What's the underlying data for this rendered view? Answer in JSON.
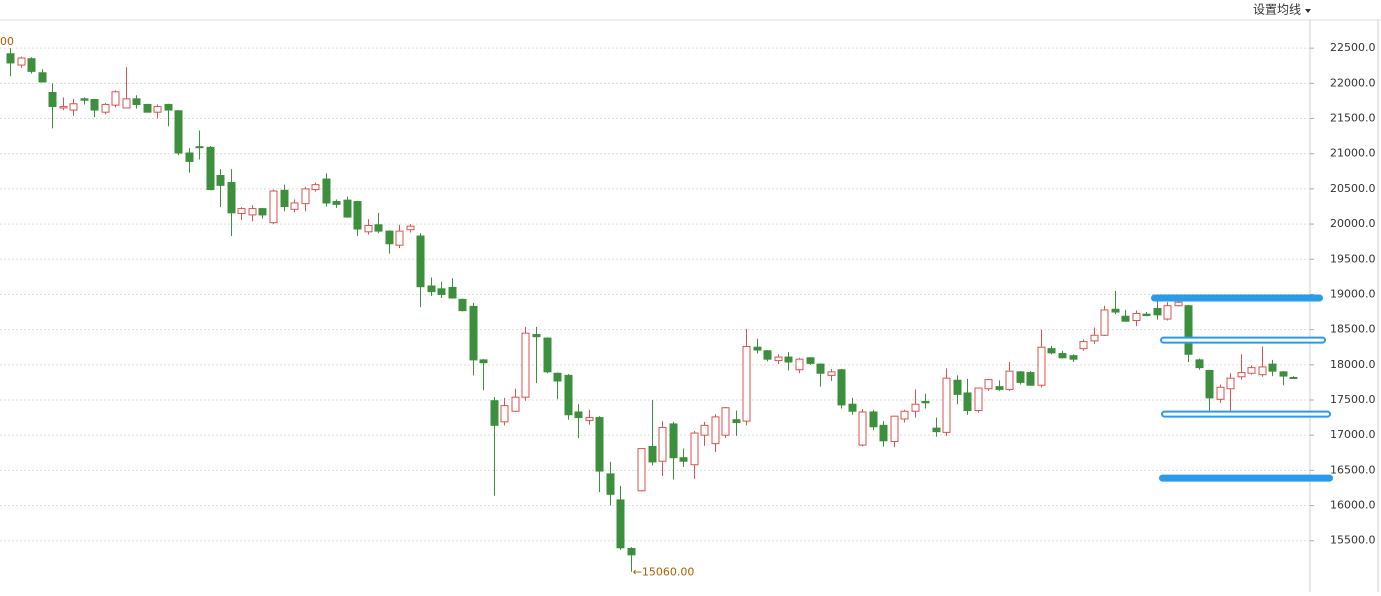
{
  "menu": {
    "label": "设置均线"
  },
  "chart_data": {
    "type": "candlestick",
    "open": [
      22420,
      22260,
      22350,
      22150,
      21870,
      21650,
      21620,
      21780,
      21770,
      21590,
      21690,
      21650,
      21780,
      21700,
      21590,
      21700,
      21610,
      21010,
      21100,
      21090,
      20690,
      20590,
      20150,
      20130,
      20220,
      20020,
      20480,
      20210,
      20290,
      20490,
      20640,
      20320,
      20340,
      20320,
      19890,
      19990,
      19900,
      19700,
      19920,
      19830,
      19120,
      19080,
      19100,
      18930,
      18830,
      18070,
      17490,
      17190,
      17340,
      17540,
      18430,
      18380,
      17880,
      17850,
      17330,
      17210,
      17250,
      16450,
      16080,
      15390,
      16210,
      16840,
      16630,
      17160,
      16680,
      16580,
      17000,
      16880,
      17000,
      17220,
      17200,
      18250,
      18200,
      18060,
      18110,
      17930,
      18100,
      18010,
      17850,
      17930,
      17440,
      16860,
      17330,
      17140,
      16910,
      17230,
      17340,
      17480,
      17100,
      17040,
      17780,
      17600,
      17350,
      17660,
      17690,
      17650,
      17900,
      17890,
      17710,
      18230,
      18160,
      18130,
      18230,
      18340,
      18420,
      18790,
      18690,
      18630,
      18720,
      18800,
      18650,
      18840,
      18840,
      18070,
      17920,
      17510,
      17660,
      17830,
      17880,
      17860,
      18010,
      17900,
      17820
    ],
    "high": [
      22500,
      22380,
      22370,
      22200,
      22000,
      21800,
      21780,
      21800,
      21780,
      21720,
      21900,
      22230,
      21830,
      21710,
      21700,
      21710,
      21620,
      21080,
      21330,
      21110,
      20780,
      20780,
      20240,
      20270,
      20230,
      20490,
      20560,
      20350,
      20530,
      20590,
      20720,
      20350,
      20390,
      20330,
      20070,
      20160,
      19910,
      19990,
      20000,
      19870,
      19240,
      19180,
      19230,
      18940,
      18880,
      18080,
      17540,
      17530,
      17660,
      18540,
      18540,
      18390,
      17890,
      17870,
      17440,
      17360,
      17270,
      16620,
      16280,
      15410,
      16810,
      17500,
      17200,
      17190,
      16810,
      17060,
      17190,
      17300,
      17400,
      17350,
      18510,
      18370,
      18210,
      18150,
      18180,
      18100,
      18110,
      18020,
      17940,
      17940,
      17530,
      17370,
      17360,
      17200,
      17280,
      17360,
      17650,
      17590,
      17250,
      17950,
      17850,
      17800,
      17670,
      17800,
      17780,
      18040,
      17910,
      17910,
      18500,
      18270,
      18200,
      18150,
      18360,
      18530,
      18840,
      19050,
      18780,
      18770,
      18750,
      18930,
      18890,
      18920,
      18850,
      18090,
      17930,
      17720,
      17880,
      18150,
      17990,
      18260,
      18070,
      17910,
      17840
    ],
    "low": [
      22100,
      22220,
      22140,
      22010,
      21360,
      21620,
      21540,
      21700,
      21520,
      21560,
      21660,
      21660,
      21640,
      21590,
      21500,
      21390,
      20980,
      20730,
      20920,
      20480,
      20240,
      19830,
      20060,
      20040,
      20080,
      20000,
      20180,
      20170,
      20180,
      20460,
      20250,
      20230,
      20090,
      19830,
      19850,
      19870,
      19580,
      19660,
      19880,
      18820,
      18980,
      18950,
      18940,
      18760,
      17850,
      17640,
      16140,
      17140,
      17330,
      17490,
      17740,
      17880,
      17510,
      17220,
      16960,
      17150,
      16190,
      16000,
      15370,
      15060,
      16200,
      16570,
      16420,
      16370,
      16550,
      16380,
      16850,
      16760,
      16960,
      16990,
      17140,
      18160,
      18050,
      18010,
      17920,
      17880,
      18000,
      17690,
      17770,
      17380,
      17290,
      16840,
      17070,
      16840,
      16830,
      17180,
      17250,
      17380,
      16980,
      16990,
      17440,
      17290,
      17320,
      17630,
      17630,
      17630,
      17720,
      17710,
      17680,
      18150,
      18090,
      18040,
      18200,
      18300,
      18410,
      18720,
      18610,
      18550,
      18690,
      18640,
      18630,
      18830,
      18040,
      17930,
      17310,
      17460,
      17260,
      17790,
      17860,
      17830,
      17840,
      17710,
      17800
    ],
    "close": [
      22290,
      22360,
      22170,
      22020,
      21670,
      21670,
      21710,
      21760,
      21620,
      21700,
      21880,
      21780,
      21700,
      21590,
      21670,
      21620,
      21010,
      20890,
      21090,
      20490,
      20550,
      20160,
      20220,
      20220,
      20130,
      20470,
      20250,
      20300,
      20500,
      20560,
      20300,
      20280,
      20100,
      19930,
      19980,
      19900,
      19720,
      19900,
      19970,
      19110,
      19040,
      19000,
      18950,
      18770,
      18070,
      18030,
      17140,
      17420,
      17540,
      18450,
      18400,
      17900,
      17770,
      17290,
      17250,
      17250,
      16490,
      16160,
      15400,
      15300,
      16810,
      16620,
      17110,
      16680,
      16630,
      17030,
      17140,
      17260,
      17390,
      17180,
      18260,
      18210,
      18080,
      18110,
      18040,
      18080,
      18020,
      17880,
      17900,
      17430,
      17340,
      17330,
      17120,
      16920,
      17270,
      17340,
      17440,
      17460,
      17050,
      17810,
      17580,
      17350,
      17670,
      17790,
      17650,
      17910,
      17750,
      17710,
      18250,
      18170,
      18100,
      18080,
      18330,
      18420,
      18780,
      18750,
      18620,
      18730,
      18700,
      18710,
      18840,
      18890,
      18150,
      17960,
      17530,
      17680,
      17810,
      17890,
      17960,
      17970,
      17910,
      17840,
      17810
    ],
    "up_color": "#d9534f",
    "down_color": "#3c8f3c",
    "level_color": "#2a9be8",
    "levels": [
      18950,
      18350,
      17300,
      16390
    ],
    "high_label": "00",
    "low_label": "←15060.00",
    "ylim": [
      14800,
      22900
    ],
    "yticks": [
      {
        "value": 15500,
        "label": "15500.0"
      },
      {
        "value": 16000,
        "label": "16000.0"
      },
      {
        "value": 16500,
        "label": "16500.0"
      },
      {
        "value": 17000,
        "label": "17000.0"
      },
      {
        "value": 17500,
        "label": "17500.0"
      },
      {
        "value": 18000,
        "label": "18000.0"
      },
      {
        "value": 18500,
        "label": "18500.0"
      },
      {
        "value": 19000,
        "label": "19000.0"
      },
      {
        "value": 19500,
        "label": "19500.0"
      },
      {
        "value": 20000,
        "label": "20000.0"
      },
      {
        "value": 20500,
        "label": "20500.0"
      },
      {
        "value": 21000,
        "label": "21000.0"
      },
      {
        "value": 21500,
        "label": "21500.0"
      },
      {
        "value": 22000,
        "label": "22000.0"
      },
      {
        "value": 22500,
        "label": "22500.0"
      }
    ],
    "grid": true
  }
}
